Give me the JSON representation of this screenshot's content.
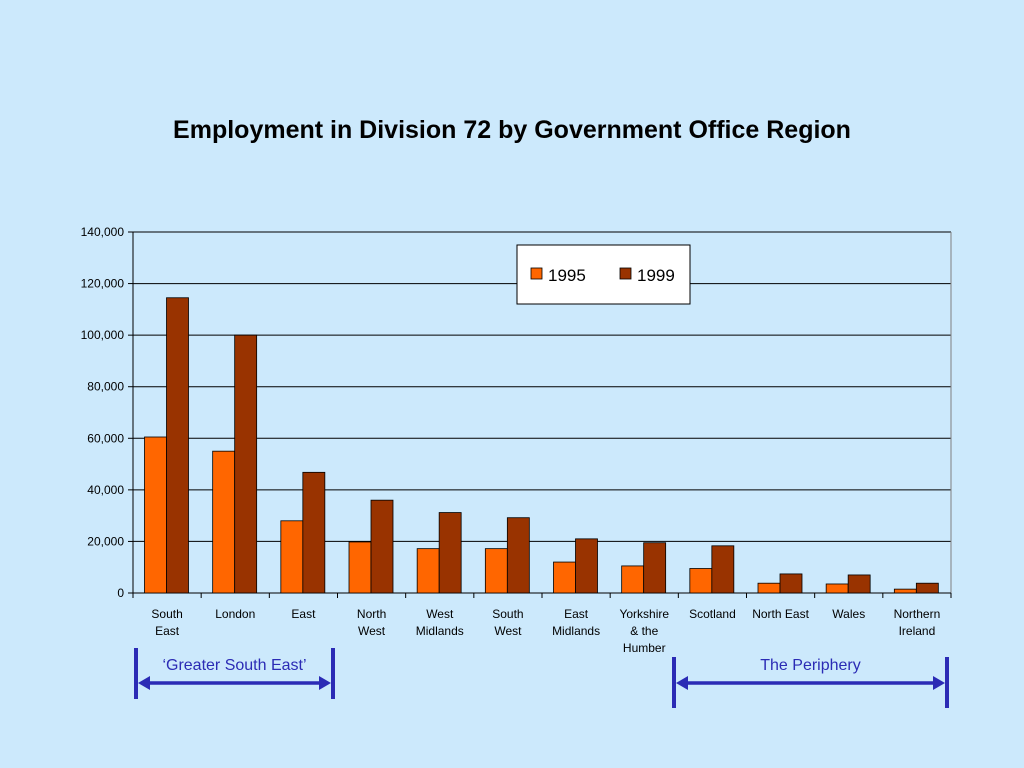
{
  "page": {
    "background": "#cce9fc"
  },
  "chart_data": {
    "type": "bar",
    "title": "Employment in Division 72 by Government Office Region",
    "xlabel": "",
    "ylabel": "",
    "ylim": [
      0,
      140000
    ],
    "yticks": [
      0,
      20000,
      40000,
      60000,
      80000,
      100000,
      120000,
      140000
    ],
    "ytick_labels": [
      "0",
      "20,000",
      "40,000",
      "60,000",
      "80,000",
      "100,000",
      "120,000",
      "140,000"
    ],
    "grid": true,
    "legend_position": "top-right",
    "categories": [
      [
        "South",
        "East"
      ],
      [
        "London"
      ],
      [
        "East"
      ],
      [
        "North",
        "West"
      ],
      [
        "West",
        "Midlands"
      ],
      [
        "South",
        "West"
      ],
      [
        "East",
        "Midlands"
      ],
      [
        "Yorkshire",
        "& the",
        "Humber"
      ],
      [
        "Scotland"
      ],
      [
        "North East"
      ],
      [
        "Wales"
      ],
      [
        "Northern",
        "Ireland"
      ]
    ],
    "series": [
      {
        "name": "1995",
        "color": "#ff6600",
        "values": [
          60500,
          55000,
          28000,
          19800,
          17200,
          17200,
          12000,
          10500,
          9500,
          3800,
          3500,
          1500
        ]
      },
      {
        "name": "1999",
        "color": "#993300",
        "values": [
          114500,
          100000,
          46800,
          36000,
          31200,
          29200,
          21000,
          19500,
          18300,
          7400,
          7000,
          3800
        ]
      }
    ],
    "annotations": [
      {
        "label": "‘Greater South East’",
        "from_category": 0,
        "to_category": 2,
        "color": "#2b2bb5"
      },
      {
        "label": "The Periphery",
        "from_category": 8,
        "to_category": 11,
        "color": "#2b2bb5"
      }
    ]
  }
}
